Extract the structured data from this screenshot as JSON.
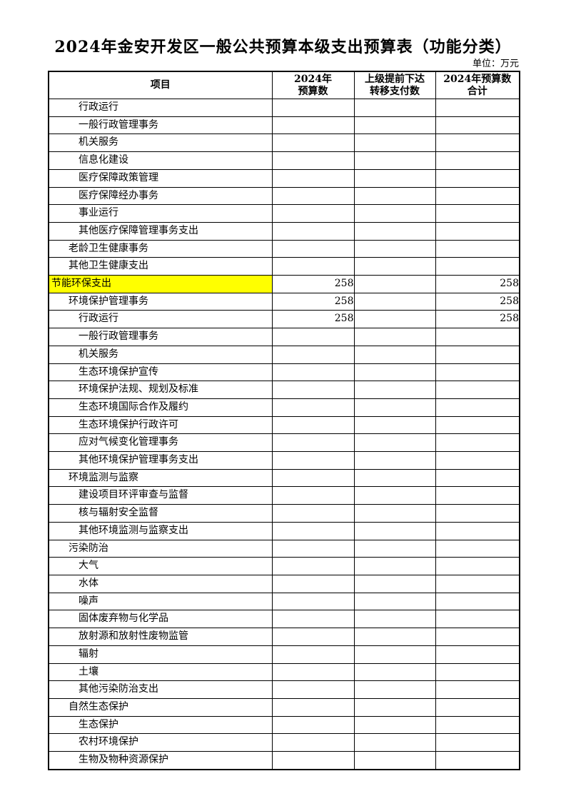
{
  "page": {
    "title": "2024年金安开发区一般公共预算本级支出预算表（功能分类）",
    "unit_label": "单位：万元"
  },
  "table": {
    "highlight_color": "#FFFF00",
    "columns": [
      {
        "label": "项目"
      },
      {
        "label": "2024年\n预算数"
      },
      {
        "label": "上级提前下达\n转移支付数"
      },
      {
        "label": "2024年预算数\n合计"
      }
    ],
    "rows": [
      {
        "label": "行政运行",
        "indent": 2,
        "budget_2024": "",
        "transfer": "",
        "total": "",
        "highlight": false
      },
      {
        "label": "一般行政管理事务",
        "indent": 2,
        "budget_2024": "",
        "transfer": "",
        "total": "",
        "highlight": false
      },
      {
        "label": "机关服务",
        "indent": 2,
        "budget_2024": "",
        "transfer": "",
        "total": "",
        "highlight": false
      },
      {
        "label": "信息化建设",
        "indent": 2,
        "budget_2024": "",
        "transfer": "",
        "total": "",
        "highlight": false
      },
      {
        "label": "医疗保障政策管理",
        "indent": 2,
        "budget_2024": "",
        "transfer": "",
        "total": "",
        "highlight": false
      },
      {
        "label": "医疗保障经办事务",
        "indent": 2,
        "budget_2024": "",
        "transfer": "",
        "total": "",
        "highlight": false
      },
      {
        "label": "事业运行",
        "indent": 2,
        "budget_2024": "",
        "transfer": "",
        "total": "",
        "highlight": false
      },
      {
        "label": "其他医疗保障管理事务支出",
        "indent": 2,
        "budget_2024": "",
        "transfer": "",
        "total": "",
        "highlight": false
      },
      {
        "label": "老龄卫生健康事务",
        "indent": 1,
        "budget_2024": "",
        "transfer": "",
        "total": "",
        "highlight": false
      },
      {
        "label": "其他卫生健康支出",
        "indent": 1,
        "budget_2024": "",
        "transfer": "",
        "total": "",
        "highlight": false
      },
      {
        "label": "节能环保支出",
        "indent": 0,
        "budget_2024": "258",
        "transfer": "",
        "total": "258",
        "highlight": true
      },
      {
        "label": "环境保护管理事务",
        "indent": 1,
        "budget_2024": "258",
        "transfer": "",
        "total": "258",
        "highlight": false
      },
      {
        "label": "行政运行",
        "indent": 2,
        "budget_2024": "258",
        "transfer": "",
        "total": "258",
        "highlight": false
      },
      {
        "label": "一般行政管理事务",
        "indent": 2,
        "budget_2024": "",
        "transfer": "",
        "total": "",
        "highlight": false
      },
      {
        "label": "机关服务",
        "indent": 2,
        "budget_2024": "",
        "transfer": "",
        "total": "",
        "highlight": false
      },
      {
        "label": "生态环境保护宣传",
        "indent": 2,
        "budget_2024": "",
        "transfer": "",
        "total": "",
        "highlight": false
      },
      {
        "label": "环境保护法规、规划及标准",
        "indent": 2,
        "budget_2024": "",
        "transfer": "",
        "total": "",
        "highlight": false
      },
      {
        "label": "生态环境国际合作及履约",
        "indent": 2,
        "budget_2024": "",
        "transfer": "",
        "total": "",
        "highlight": false
      },
      {
        "label": "生态环境保护行政许可",
        "indent": 2,
        "budget_2024": "",
        "transfer": "",
        "total": "",
        "highlight": false
      },
      {
        "label": "应对气候变化管理事务",
        "indent": 2,
        "budget_2024": "",
        "transfer": "",
        "total": "",
        "highlight": false
      },
      {
        "label": "其他环境保护管理事务支出",
        "indent": 2,
        "budget_2024": "",
        "transfer": "",
        "total": "",
        "highlight": false
      },
      {
        "label": "环境监测与监察",
        "indent": 1,
        "budget_2024": "",
        "transfer": "",
        "total": "",
        "highlight": false
      },
      {
        "label": "建设项目环评审查与监督",
        "indent": 2,
        "budget_2024": "",
        "transfer": "",
        "total": "",
        "highlight": false
      },
      {
        "label": "核与辐射安全监督",
        "indent": 2,
        "budget_2024": "",
        "transfer": "",
        "total": "",
        "highlight": false
      },
      {
        "label": "其他环境监测与监察支出",
        "indent": 2,
        "budget_2024": "",
        "transfer": "",
        "total": "",
        "highlight": false
      },
      {
        "label": "污染防治",
        "indent": 1,
        "budget_2024": "",
        "transfer": "",
        "total": "",
        "highlight": false
      },
      {
        "label": "大气",
        "indent": 2,
        "budget_2024": "",
        "transfer": "",
        "total": "",
        "highlight": false
      },
      {
        "label": "水体",
        "indent": 2,
        "budget_2024": "",
        "transfer": "",
        "total": "",
        "highlight": false
      },
      {
        "label": "噪声",
        "indent": 2,
        "budget_2024": "",
        "transfer": "",
        "total": "",
        "highlight": false
      },
      {
        "label": "固体废弃物与化学品",
        "indent": 2,
        "budget_2024": "",
        "transfer": "",
        "total": "",
        "highlight": false
      },
      {
        "label": "放射源和放射性废物监管",
        "indent": 2,
        "budget_2024": "",
        "transfer": "",
        "total": "",
        "highlight": false
      },
      {
        "label": "辐射",
        "indent": 2,
        "budget_2024": "",
        "transfer": "",
        "total": "",
        "highlight": false
      },
      {
        "label": "土壤",
        "indent": 2,
        "budget_2024": "",
        "transfer": "",
        "total": "",
        "highlight": false
      },
      {
        "label": "其他污染防治支出",
        "indent": 2,
        "budget_2024": "",
        "transfer": "",
        "total": "",
        "highlight": false
      },
      {
        "label": "自然生态保护",
        "indent": 1,
        "budget_2024": "",
        "transfer": "",
        "total": "",
        "highlight": false
      },
      {
        "label": "生态保护",
        "indent": 2,
        "budget_2024": "",
        "transfer": "",
        "total": "",
        "highlight": false
      },
      {
        "label": "农村环境保护",
        "indent": 2,
        "budget_2024": "",
        "transfer": "",
        "total": "",
        "highlight": false
      },
      {
        "label": "生物及物种资源保护",
        "indent": 2,
        "budget_2024": "",
        "transfer": "",
        "total": "",
        "highlight": false
      }
    ]
  }
}
